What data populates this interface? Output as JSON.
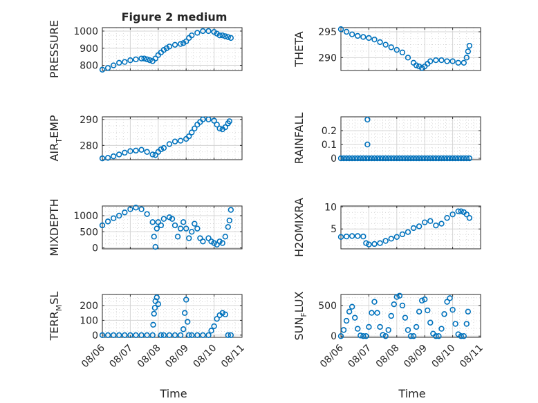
{
  "page": {
    "title": "Figure 2 medium"
  },
  "style": {
    "marker_color": "#0072bd",
    "axis_color": "#262626",
    "grid_color": "#d4d4d4"
  },
  "chart_data": [
    {
      "type": "scatter",
      "marker": "circle",
      "ylabel": "PRESSURE",
      "ylim": [
        770,
        1020
      ],
      "yticks": [
        800,
        900,
        1000
      ],
      "ytick_labels": [
        "800",
        "900",
        "1000"
      ],
      "xlim": [
        0,
        5
      ],
      "grid": true,
      "x": [
        0.0,
        0.2,
        0.4,
        0.6,
        0.8,
        1.0,
        1.2,
        1.4,
        1.5,
        1.6,
        1.7,
        1.8,
        1.9,
        2.0,
        2.1,
        2.2,
        2.3,
        2.4,
        2.6,
        2.8,
        2.9,
        3.0,
        3.1,
        3.2,
        3.4,
        3.6,
        3.8,
        4.0,
        4.1,
        4.2,
        4.3,
        4.4,
        4.5,
        4.6
      ],
      "y": [
        775,
        785,
        800,
        815,
        820,
        830,
        835,
        840,
        840,
        835,
        830,
        825,
        840,
        860,
        875,
        890,
        900,
        910,
        920,
        925,
        930,
        940,
        960,
        975,
        990,
        1000,
        1000,
        995,
        985,
        975,
        975,
        970,
        965,
        960
      ]
    },
    {
      "type": "scatter",
      "marker": "circle",
      "ylabel": "THETA",
      "ylim": [
        287.5,
        295.8
      ],
      "yticks": [
        290,
        295
      ],
      "ytick_labels": [
        "290",
        "295"
      ],
      "xlim": [
        0,
        5
      ],
      "grid": true,
      "x": [
        0.0,
        0.2,
        0.4,
        0.6,
        0.8,
        1.0,
        1.2,
        1.4,
        1.6,
        1.8,
        2.0,
        2.2,
        2.4,
        2.6,
        2.7,
        2.8,
        2.9,
        3.0,
        3.1,
        3.2,
        3.4,
        3.6,
        3.8,
        4.0,
        4.2,
        4.4,
        4.5,
        4.55,
        4.6
      ],
      "y": [
        295.5,
        295.0,
        294.5,
        294.2,
        294.0,
        293.8,
        293.5,
        293.0,
        292.5,
        292.0,
        291.5,
        291.0,
        290.0,
        289.0,
        288.5,
        288.3,
        288.0,
        288.3,
        288.8,
        289.3,
        289.5,
        289.5,
        289.3,
        289.3,
        289.0,
        289.0,
        290.0,
        291.2,
        292.3
      ]
    },
    {
      "type": "scatter",
      "marker": "circle",
      "ylabel": "AIR_TEMP",
      "ylim": [
        274.5,
        291
      ],
      "yticks": [
        280,
        290
      ],
      "ytick_labels": [
        "280",
        "290"
      ],
      "xlim": [
        0,
        5
      ],
      "grid": true,
      "x": [
        0.0,
        0.2,
        0.4,
        0.6,
        0.8,
        1.0,
        1.2,
        1.4,
        1.6,
        1.8,
        1.9,
        2.0,
        2.1,
        2.2,
        2.4,
        2.6,
        2.8,
        3.0,
        3.1,
        3.2,
        3.3,
        3.4,
        3.5,
        3.6,
        3.8,
        4.0,
        4.1,
        4.2,
        4.3,
        4.4,
        4.5,
        4.55
      ],
      "y": [
        275,
        275.2,
        275.8,
        276.5,
        277.2,
        277.8,
        278.0,
        278.3,
        277.5,
        276.5,
        276.3,
        277.5,
        278.5,
        279.0,
        280.5,
        281.5,
        281.8,
        282.5,
        283.5,
        285.0,
        286.5,
        288.0,
        289.0,
        290.0,
        290.0,
        289.5,
        288.0,
        286.5,
        286.2,
        287.0,
        288.5,
        289.3
      ]
    },
    {
      "type": "scatter",
      "marker": "circle",
      "ylabel": "RAINFALL",
      "ylim": [
        -0.01,
        0.3
      ],
      "yticks": [
        0,
        0.1,
        0.2
      ],
      "ytick_labels": [
        "0",
        "0.1",
        "0.2"
      ],
      "xlim": [
        0,
        5
      ],
      "grid": true,
      "x": [
        0.0,
        0.1,
        0.2,
        0.3,
        0.4,
        0.5,
        0.6,
        0.7,
        0.8,
        0.9,
        0.95,
        0.95,
        1.0,
        1.1,
        1.2,
        1.3,
        1.4,
        1.5,
        1.6,
        1.7,
        1.8,
        1.9,
        2.0,
        2.1,
        2.2,
        2.3,
        2.4,
        2.5,
        2.6,
        2.7,
        2.8,
        2.9,
        3.0,
        3.1,
        3.2,
        3.3,
        3.4,
        3.5,
        3.6,
        3.7,
        3.8,
        3.9,
        4.0,
        4.1,
        4.2,
        4.3,
        4.4,
        4.5,
        4.6
      ],
      "y": [
        0,
        0,
        0,
        0,
        0,
        0,
        0,
        0,
        0,
        0,
        0.28,
        0.1,
        0,
        0,
        0,
        0,
        0,
        0,
        0,
        0,
        0,
        0,
        0,
        0,
        0,
        0,
        0,
        0,
        0,
        0,
        0,
        0,
        0,
        0,
        0,
        0,
        0,
        0,
        0,
        0,
        0,
        0,
        0,
        0,
        0,
        0,
        0,
        0,
        0
      ]
    },
    {
      "type": "scatter",
      "marker": "circle",
      "ylabel": "MIXDEPTH",
      "ylim": [
        -30,
        1300
      ],
      "yticks": [
        0,
        500,
        1000
      ],
      "ytick_labels": [
        "0",
        "500",
        "1000"
      ],
      "xlim": [
        0,
        5
      ],
      "grid": true,
      "x": [
        0.0,
        0.2,
        0.4,
        0.6,
        0.8,
        1.0,
        1.2,
        1.4,
        1.6,
        1.8,
        1.85,
        1.9,
        1.95,
        2.0,
        2.1,
        2.2,
        2.4,
        2.5,
        2.6,
        2.7,
        2.8,
        2.9,
        3.0,
        3.1,
        3.2,
        3.3,
        3.4,
        3.5,
        3.6,
        3.8,
        3.9,
        4.0,
        4.1,
        4.2,
        4.3,
        4.4,
        4.5,
        4.55,
        4.6
      ],
      "y": [
        700,
        820,
        920,
        1000,
        1100,
        1200,
        1250,
        1200,
        1050,
        800,
        350,
        30,
        600,
        800,
        700,
        900,
        950,
        900,
        700,
        350,
        600,
        800,
        600,
        300,
        500,
        750,
        600,
        300,
        200,
        300,
        200,
        150,
        100,
        200,
        150,
        350,
        650,
        850,
        1180
      ]
    },
    {
      "type": "scatter",
      "marker": "circle",
      "ylabel": "H2OMIXRA",
      "ylim": [
        0.5,
        10.2
      ],
      "yticks": [
        0,
        5,
        10
      ],
      "ytick_labels": [
        "0",
        "5",
        "10"
      ],
      "xlim": [
        0,
        5
      ],
      "grid": true,
      "x": [
        0.0,
        0.2,
        0.4,
        0.6,
        0.8,
        0.9,
        1.0,
        1.2,
        1.4,
        1.6,
        1.8,
        2.0,
        2.2,
        2.4,
        2.6,
        2.8,
        3.0,
        3.2,
        3.4,
        3.6,
        3.8,
        4.0,
        4.2,
        4.3,
        4.4,
        4.5,
        4.6
      ],
      "y": [
        3.2,
        3.3,
        3.4,
        3.4,
        3.3,
        1.8,
        1.5,
        1.6,
        1.8,
        2.3,
        2.8,
        3.2,
        3.8,
        4.3,
        5.2,
        5.6,
        6.5,
        6.8,
        5.8,
        6.2,
        7.5,
        8.3,
        9.0,
        9.0,
        8.8,
        8.3,
        7.5
      ]
    },
    {
      "type": "scatter",
      "marker": "circle",
      "ylabel": "TERR_MSL",
      "ylim": [
        -15,
        275
      ],
      "yticks": [
        0,
        100,
        200
      ],
      "ytick_labels": [
        "0",
        "100",
        "200"
      ],
      "xlim": [
        0,
        5
      ],
      "grid": true,
      "x": [
        0.0,
        0.2,
        0.4,
        0.6,
        0.8,
        1.0,
        1.2,
        1.4,
        1.6,
        1.8,
        1.82,
        1.85,
        1.88,
        1.9,
        1.95,
        2.0,
        2.1,
        2.2,
        2.4,
        2.6,
        2.8,
        2.9,
        2.95,
        3.0,
        3.05,
        3.1,
        3.2,
        3.4,
        3.6,
        3.8,
        3.9,
        4.0,
        4.1,
        4.2,
        4.3,
        4.4,
        4.5,
        4.6
      ],
      "y": [
        0,
        0,
        0,
        0,
        0,
        0,
        0,
        0,
        0,
        0,
        70,
        145,
        185,
        230,
        255,
        210,
        0,
        0,
        0,
        0,
        0,
        40,
        150,
        240,
        90,
        0,
        0,
        0,
        0,
        0,
        30,
        60,
        110,
        135,
        150,
        140,
        0,
        0
      ]
    },
    {
      "type": "scatter",
      "marker": "circle",
      "ylabel": "SUN_FLUX",
      "ylim": [
        -20,
        680
      ],
      "yticks": [
        0,
        500
      ],
      "ytick_labels": [
        "0",
        "500"
      ],
      "xlim": [
        0,
        5
      ],
      "grid": true,
      "x": [
        0.0,
        0.1,
        0.2,
        0.3,
        0.4,
        0.5,
        0.6,
        0.7,
        0.8,
        0.9,
        1.0,
        1.1,
        1.2,
        1.3,
        1.4,
        1.5,
        1.6,
        1.7,
        1.8,
        1.9,
        2.0,
        2.1,
        2.2,
        2.3,
        2.4,
        2.5,
        2.6,
        2.7,
        2.8,
        2.9,
        3.0,
        3.1,
        3.2,
        3.3,
        3.4,
        3.5,
        3.6,
        3.7,
        3.8,
        3.9,
        4.0,
        4.1,
        4.2,
        4.3,
        4.4,
        4.5,
        4.55
      ],
      "y": [
        0,
        100,
        250,
        400,
        480,
        300,
        120,
        10,
        0,
        0,
        150,
        380,
        560,
        380,
        150,
        20,
        0,
        100,
        330,
        520,
        640,
        660,
        500,
        300,
        100,
        0,
        0,
        150,
        400,
        580,
        600,
        420,
        220,
        40,
        0,
        0,
        120,
        360,
        560,
        620,
        430,
        200,
        30,
        0,
        0,
        200,
        400
      ]
    }
  ],
  "axes": {
    "xtick_labels": [
      "08/06",
      "08/07",
      "08/08",
      "08/09",
      "08/10",
      "08/11"
    ],
    "xlabel_left": "Time",
    "xlabel_right": "Time",
    "ylabels": [
      {
        "main": "PRESSURE"
      },
      {
        "main": "THETA"
      },
      {
        "main": "AIR",
        "sub": "T",
        "tail": "EMP"
      },
      {
        "main": "RAINFALL"
      },
      {
        "main": "MIXDEPTH"
      },
      {
        "main": "H2OMIXRA"
      },
      {
        "main": "TERR",
        "sub": "M",
        "tail": "SL"
      },
      {
        "main": "SUN",
        "sub": "F",
        "tail": "LUX"
      }
    ]
  }
}
